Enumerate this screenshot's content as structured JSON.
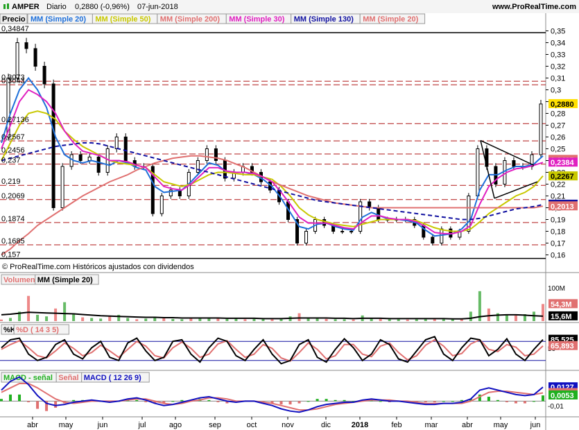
{
  "header": {
    "symbol": "AMPER",
    "period": "Diario",
    "last_change": "0,2880 (-0,96%)",
    "date": "07-jun-2018",
    "site": "www.ProRealTime.com"
  },
  "price_panel": {
    "title": "Precio",
    "legend": [
      {
        "text": "MM (Simple 20)",
        "color": "#1e6fd9"
      },
      {
        "text": "MM (Simple 50)",
        "color": "#c8c800"
      },
      {
        "text": "MM (Simple 200)",
        "color": "#e07070"
      },
      {
        "text": "MM (Simple 30)",
        "color": "#e020c0"
      },
      {
        "text": "MM (Simple 130)",
        "color": "#1010a0"
      },
      {
        "text": "MM (Simple 20)",
        "color": "#e07070"
      }
    ],
    "footer": "© ProRealTime.com Históricos ajustados con dividendos",
    "left_labels": [
      "0,34847",
      "0,3073",
      "0,3043",
      "0,27136",
      "0,2567",
      "0,2456",
      "0,237",
      "0,219",
      "0,2069",
      "0,1874",
      "0,1685",
      "0,157"
    ],
    "right_badges": [
      {
        "text": "0,2880",
        "color": "#ffe000",
        "text_color": "#000000"
      },
      {
        "text": "0,2407",
        "color": "#e07070",
        "text_color": "#ffffff"
      },
      {
        "text": "0,2384",
        "color": "#e020c0",
        "text_color": "#ffffff"
      },
      {
        "text": "0,2267",
        "color": "#c8c800",
        "text_color": "#000000"
      },
      {
        "text": "0,2027",
        "color": "#1010a0",
        "text_color": "#ffffff"
      },
      {
        "text": "0,2013",
        "color": "#e07070",
        "text_color": "#ffffff"
      }
    ]
  },
  "volume_panel": {
    "legend": [
      {
        "text": "Volumen",
        "color": "#e07070"
      },
      {
        "text": "MM (Simple 20)",
        "color": "#000000"
      }
    ],
    "badges": [
      {
        "text": "54,3M",
        "color": "#e07070",
        "text_color": "#ffffff"
      },
      {
        "text": "15,6M",
        "color": "#000000",
        "text_color": "#ffffff"
      }
    ],
    "axis_label": "100M"
  },
  "stoch_panel": {
    "legend": [
      {
        "text": "%K",
        "color": "#000000"
      },
      {
        "text": "%D ( 14 3 5)",
        "color": "#e07070"
      }
    ],
    "badges": [
      {
        "text": "85,525",
        "color": "#000000",
        "text_color": "#ffffff"
      },
      {
        "text": "65,893",
        "color": "#e07070",
        "text_color": "#ffffff"
      }
    ],
    "axis_label": "50"
  },
  "macd_panel": {
    "legend": [
      {
        "text": "MACD - señal",
        "color": "#20b020"
      },
      {
        "text": "Señal",
        "color": "#e07070"
      },
      {
        "text": "MACD ( 12 26 9)",
        "color": "#1010c0"
      }
    ],
    "badges": [
      {
        "text": "0,0127",
        "color": "#1010c0",
        "text_color": "#ffffff"
      },
      {
        "text": "0,0075",
        "color": "#e07070",
        "text_color": "#ffffff"
      },
      {
        "text": "0,0053",
        "color": "#20b020",
        "text_color": "#ffffff"
      }
    ],
    "axis_label": "-0,01"
  },
  "chart_data": {
    "type": "line",
    "title": "AMPER Diario",
    "price_axis": {
      "ylim": [
        0.155,
        0.355
      ],
      "ticks": [
        "0,35",
        "0,34",
        "0,33",
        "0,32",
        "0,31",
        "0,3",
        "0,29",
        "0,28",
        "0,27",
        "0,26",
        "0,25",
        "0,24",
        "0,23",
        "0,22",
        "0,21",
        "0,2",
        "0,19",
        "0,18",
        "0,17",
        "0,16"
      ],
      "tick_values": [
        0.35,
        0.34,
        0.33,
        0.32,
        0.31,
        0.3,
        0.29,
        0.28,
        0.27,
        0.26,
        0.25,
        0.24,
        0.23,
        0.22,
        0.21,
        0.2,
        0.19,
        0.18,
        0.17,
        0.16
      ]
    },
    "months": [
      "abr",
      "may",
      "jun",
      "jul",
      "ago",
      "sep",
      "oct",
      "nov",
      "dic",
      "2018",
      "feb",
      "mar",
      "abr",
      "may",
      "jun"
    ],
    "horizontal_levels": [
      0.34847,
      0.3073,
      0.3043,
      0.27136,
      0.2567,
      0.2456,
      0.237,
      0.219,
      0.2069,
      0.1874,
      0.1685,
      0.157
    ],
    "series": [
      {
        "name": "Precio",
        "values": [
          0.26,
          0.31,
          0.34,
          0.335,
          0.32,
          0.305,
          0.2,
          0.235,
          0.245,
          0.24,
          0.243,
          0.23,
          0.25,
          0.26,
          0.24,
          0.235,
          0.235,
          0.195,
          0.21,
          0.215,
          0.21,
          0.23,
          0.24,
          0.25,
          0.24,
          0.225,
          0.23,
          0.235,
          0.23,
          0.222,
          0.215,
          0.205,
          0.19,
          0.17,
          0.18,
          0.19,
          0.185,
          0.18,
          0.18,
          0.18,
          0.205,
          0.2,
          0.19,
          0.19,
          0.19,
          0.19,
          0.185,
          0.175,
          0.17,
          0.182,
          0.175,
          0.18,
          0.21,
          0.25,
          0.235,
          0.22,
          0.24,
          0.235,
          0.235,
          0.245,
          0.288
        ]
      },
      {
        "name": "MM (Simple 20)",
        "values": [
          0.255,
          0.28,
          0.3,
          0.31,
          0.3,
          0.285,
          0.26,
          0.245,
          0.24,
          0.238,
          0.24,
          0.238,
          0.236,
          0.24,
          0.238,
          0.234,
          0.232,
          0.218,
          0.213,
          0.214,
          0.215,
          0.222,
          0.23,
          0.238,
          0.236,
          0.23,
          0.23,
          0.23,
          0.228,
          0.224,
          0.218,
          0.208,
          0.196,
          0.184,
          0.182,
          0.186,
          0.187,
          0.184,
          0.182,
          0.181,
          0.192,
          0.196,
          0.193,
          0.19,
          0.19,
          0.189,
          0.187,
          0.181,
          0.176,
          0.177,
          0.178,
          0.182,
          0.19,
          0.215,
          0.228,
          0.228,
          0.232,
          0.235,
          0.235,
          0.237,
          0.244
        ]
      },
      {
        "name": "MM (Simple 50)",
        "values": [
          0.24,
          0.255,
          0.27,
          0.28,
          0.282,
          0.28,
          0.275,
          0.265,
          0.258,
          0.252,
          0.248,
          0.244,
          0.24,
          0.238,
          0.237,
          0.236,
          0.234,
          0.228,
          0.222,
          0.22,
          0.218,
          0.22,
          0.224,
          0.228,
          0.23,
          0.23,
          0.229,
          0.228,
          0.228,
          0.226,
          0.224,
          0.218,
          0.21,
          0.2,
          0.194,
          0.19,
          0.188,
          0.186,
          0.185,
          0.184,
          0.186,
          0.188,
          0.19,
          0.19,
          0.19,
          0.19,
          0.189,
          0.186,
          0.183,
          0.181,
          0.18,
          0.18,
          0.182,
          0.188,
          0.195,
          0.2,
          0.205,
          0.21,
          0.213,
          0.218,
          0.227
        ]
      },
      {
        "name": "MM (Simple 200)",
        "values": [
          0.16,
          0.165,
          0.172,
          0.178,
          0.185,
          0.19,
          0.195,
          0.2,
          0.205,
          0.21,
          0.214,
          0.218,
          0.222,
          0.225,
          0.228,
          0.232,
          0.235,
          0.238,
          0.24,
          0.242,
          0.243,
          0.244,
          0.244,
          0.243,
          0.242,
          0.24,
          0.237,
          0.234,
          0.23,
          0.226,
          0.222,
          0.219,
          0.216,
          0.213,
          0.21,
          0.208,
          0.206,
          0.204,
          0.203,
          0.202,
          0.201,
          0.2,
          0.2,
          0.2,
          0.2,
          0.2,
          0.2,
          0.2,
          0.2,
          0.2,
          0.2,
          0.2,
          0.2,
          0.2,
          0.2,
          0.2,
          0.2,
          0.2,
          0.2,
          0.2,
          0.2013
        ]
      },
      {
        "name": "MM (Simple 30)",
        "values": [
          0.25,
          0.27,
          0.29,
          0.3,
          0.296,
          0.29,
          0.28,
          0.265,
          0.255,
          0.248,
          0.246,
          0.244,
          0.24,
          0.24,
          0.239,
          0.236,
          0.234,
          0.226,
          0.218,
          0.216,
          0.215,
          0.22,
          0.227,
          0.234,
          0.234,
          0.231,
          0.23,
          0.23,
          0.229,
          0.226,
          0.222,
          0.213,
          0.203,
          0.192,
          0.187,
          0.187,
          0.187,
          0.185,
          0.183,
          0.182,
          0.188,
          0.193,
          0.193,
          0.191,
          0.19,
          0.19,
          0.188,
          0.184,
          0.179,
          0.178,
          0.178,
          0.18,
          0.185,
          0.203,
          0.218,
          0.225,
          0.23,
          0.233,
          0.234,
          0.236,
          0.2384
        ]
      },
      {
        "name": "MM (Simple 130)",
        "values": [
          0.24,
          0.242,
          0.244,
          0.246,
          0.248,
          0.25,
          0.252,
          0.253,
          0.254,
          0.255,
          0.255,
          0.254,
          0.252,
          0.25,
          0.248,
          0.246,
          0.244,
          0.242,
          0.24,
          0.238,
          0.236,
          0.234,
          0.232,
          0.23,
          0.228,
          0.226,
          0.224,
          0.222,
          0.22,
          0.218,
          0.216,
          0.214,
          0.212,
          0.21,
          0.208,
          0.206,
          0.205,
          0.204,
          0.203,
          0.202,
          0.201,
          0.2,
          0.199,
          0.198,
          0.197,
          0.196,
          0.195,
          0.194,
          0.193,
          0.192,
          0.191,
          0.19,
          0.19,
          0.191,
          0.193,
          0.195,
          0.197,
          0.199,
          0.2,
          0.201,
          0.2027
        ]
      }
    ],
    "volume": {
      "values": [
        5,
        10,
        30,
        80,
        20,
        15,
        40,
        60,
        25,
        12,
        10,
        8,
        15,
        20,
        10,
        6,
        8,
        12,
        9,
        7,
        6,
        8,
        10,
        12,
        9,
        7,
        8,
        6,
        7,
        8,
        6,
        9,
        15,
        25,
        12,
        8,
        7,
        6,
        6,
        5,
        18,
        10,
        7,
        6,
        6,
        5,
        6,
        9,
        8,
        7,
        6,
        7,
        30,
        95,
        40,
        25,
        20,
        18,
        22,
        30,
        54.3
      ],
      "ma": [
        20,
        22,
        25,
        28,
        27,
        26,
        25,
        24,
        23,
        21,
        19,
        17,
        16,
        15,
        14,
        13,
        12,
        12,
        11,
        11,
        10,
        10,
        10,
        10,
        10,
        9,
        9,
        9,
        9,
        8,
        8,
        8,
        9,
        10,
        10,
        10,
        10,
        9,
        9,
        8,
        9,
        9,
        9,
        8,
        8,
        8,
        8,
        8,
        8,
        8,
        7,
        7,
        9,
        14,
        17,
        19,
        20,
        20,
        19,
        17,
        15.6
      ],
      "ylim": [
        0,
        110
      ]
    },
    "stochastic": {
      "k": [
        60,
        85,
        90,
        40,
        20,
        30,
        70,
        85,
        40,
        25,
        60,
        80,
        30,
        20,
        75,
        90,
        50,
        20,
        30,
        80,
        85,
        40,
        15,
        60,
        90,
        80,
        35,
        20,
        55,
        85,
        40,
        10,
        20,
        70,
        85,
        30,
        15,
        55,
        88,
        60,
        20,
        40,
        85,
        70,
        25,
        15,
        50,
        85,
        95,
        40,
        20,
        60,
        90,
        85,
        35,
        55,
        88,
        40,
        20,
        55,
        85.525
      ],
      "d": [
        55,
        70,
        82,
        60,
        35,
        28,
        50,
        75,
        58,
        35,
        45,
        68,
        50,
        30,
        55,
        80,
        65,
        35,
        28,
        60,
        78,
        58,
        30,
        40,
        72,
        82,
        55,
        30,
        40,
        70,
        58,
        28,
        18,
        45,
        75,
        55,
        25,
        35,
        70,
        70,
        40,
        32,
        65,
        75,
        45,
        22,
        35,
        68,
        85,
        65,
        35,
        42,
        72,
        85,
        55,
        48,
        70,
        62,
        35,
        40,
        65.893
      ],
      "ylim": [
        0,
        100
      ]
    },
    "macd": {
      "macd": [
        0.01,
        0.018,
        0.022,
        0.015,
        0.005,
        -0.002,
        -0.004,
        -0.003,
        -0.001,
        0,
        0.001,
        0,
        -0.001,
        0,
        0.002,
        0.003,
        0.001,
        -0.002,
        -0.004,
        -0.003,
        -0.001,
        0.001,
        0.003,
        0.004,
        0.002,
        0,
        -0.001,
        0,
        0,
        -0.002,
        -0.004,
        -0.007,
        -0.009,
        -0.01,
        -0.008,
        -0.005,
        -0.003,
        -0.002,
        -0.001,
        -0.001,
        0.001,
        0.002,
        0.001,
        0,
        0,
        -0.001,
        -0.002,
        -0.003,
        -0.003,
        -0.002,
        -0.002,
        -0.001,
        0.002,
        0.01,
        0.012,
        0.01,
        0.008,
        0.006,
        0.005,
        0.006,
        0.0127
      ],
      "signal": [
        0.008,
        0.012,
        0.016,
        0.016,
        0.012,
        0.007,
        0.002,
        -0.001,
        -0.002,
        -0.001,
        0,
        0,
        0,
        0,
        0.001,
        0.002,
        0.002,
        0,
        -0.002,
        -0.003,
        -0.002,
        0,
        0.001,
        0.003,
        0.003,
        0.002,
        0,
        0,
        0,
        -0.001,
        -0.002,
        -0.004,
        -0.006,
        -0.008,
        -0.008,
        -0.007,
        -0.005,
        -0.003,
        -0.002,
        -0.001,
        0,
        0.001,
        0.001,
        0.001,
        0,
        0,
        -0.001,
        -0.002,
        -0.002,
        -0.002,
        -0.002,
        -0.002,
        0,
        0.004,
        0.008,
        0.009,
        0.009,
        0.008,
        0.007,
        0.006,
        0.0075
      ],
      "ylim": [
        -0.013,
        0.016
      ]
    }
  }
}
